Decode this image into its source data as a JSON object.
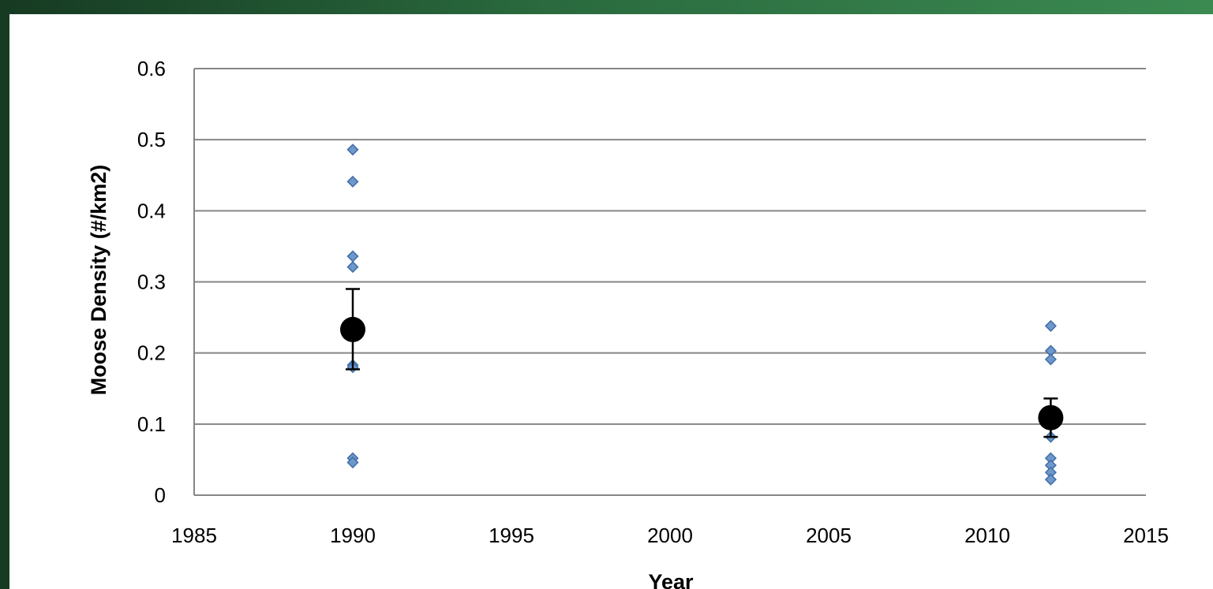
{
  "chart_data": {
    "type": "scatter",
    "xlabel": "Year",
    "ylabel": "Moose Density (#/km2)",
    "xlim": [
      1985,
      2015
    ],
    "ylim": [
      0,
      0.6
    ],
    "x_ticks": [
      "1985",
      "1990",
      "1995",
      "2000",
      "2005",
      "2010",
      "2015"
    ],
    "y_ticks": [
      "0",
      "0.1",
      "0.2",
      "0.3",
      "0.4",
      "0.5",
      "0.6"
    ],
    "grid": "horizontal",
    "series": [
      {
        "marker": "diamond",
        "color": "#4f81bd",
        "points": [
          {
            "x": 1990,
            "y": 0.486
          },
          {
            "x": 1990,
            "y": 0.441
          },
          {
            "x": 1990,
            "y": 0.336
          },
          {
            "x": 1990,
            "y": 0.321
          },
          {
            "x": 1990,
            "y": 0.183
          },
          {
            "x": 1990,
            "y": 0.18
          },
          {
            "x": 1990,
            "y": 0.052
          },
          {
            "x": 1990,
            "y": 0.046
          },
          {
            "x": 2012,
            "y": 0.238
          },
          {
            "x": 2012,
            "y": 0.203
          },
          {
            "x": 2012,
            "y": 0.191
          },
          {
            "x": 2012,
            "y": 0.082
          },
          {
            "x": 2012,
            "y": 0.052
          },
          {
            "x": 2012,
            "y": 0.042
          },
          {
            "x": 2012,
            "y": 0.032
          },
          {
            "x": 2012,
            "y": 0.022
          }
        ]
      },
      {
        "marker": "circle",
        "color": "#000000",
        "points": [
          {
            "x": 1990,
            "y": 0.233,
            "err_high": 0.29,
            "err_low": 0.177
          },
          {
            "x": 2012,
            "y": 0.109,
            "err_high": 0.136,
            "err_low": 0.082
          }
        ]
      }
    ]
  },
  "colors": {
    "frame": "#2a6a3e",
    "grid": "#868686",
    "diamond": "#4f81bd",
    "mean": "#000000"
  }
}
